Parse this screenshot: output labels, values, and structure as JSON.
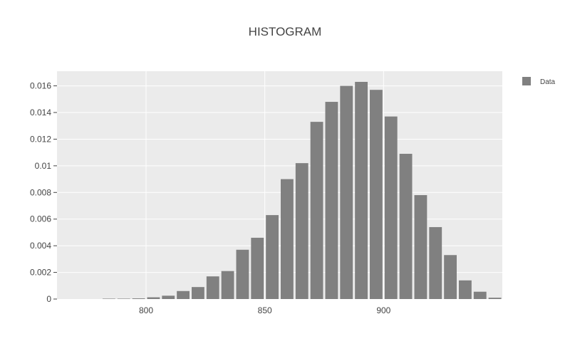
{
  "colors": {
    "bar": "#808080",
    "plot_background": "#ebebeb",
    "grid": "#ffffff",
    "text": "#444444"
  },
  "chart_data": {
    "type": "bar",
    "title": "HISTOGRAM",
    "xlabel": "",
    "ylabel": "",
    "bin_width": 6.25,
    "bin_starts": [
      762.5,
      768.75,
      775,
      781.25,
      787.5,
      793.75,
      800,
      806.25,
      812.5,
      818.75,
      825,
      831.25,
      837.5,
      843.75,
      850,
      856.25,
      862.5,
      868.75,
      875,
      881.25,
      887.5,
      893.75,
      900,
      906.25,
      912.5,
      918.75,
      925,
      931.25,
      937.5,
      943.75
    ],
    "series": [
      {
        "name": "Data",
        "values": [
          0,
          0,
          0,
          3e-05,
          3e-05,
          5e-05,
          0.00013,
          0.00025,
          0.0006,
          0.0009,
          0.0017,
          0.0021,
          0.0037,
          0.0046,
          0.0063,
          0.009,
          0.0102,
          0.0133,
          0.0148,
          0.016,
          0.0163,
          0.0157,
          0.0137,
          0.0109,
          0.0078,
          0.0054,
          0.0033,
          0.0014,
          0.00055,
          0.0001
        ]
      }
    ],
    "xlim": [
      762.5,
      950
    ],
    "ylim": [
      0,
      0.0171
    ],
    "x_ticks": [
      800,
      850,
      900
    ],
    "x_tick_labels": [
      "800",
      "850",
      "900"
    ],
    "y_ticks": [
      0,
      0.002,
      0.004,
      0.006,
      0.008,
      0.01,
      0.012,
      0.014,
      0.016
    ],
    "y_tick_labels": [
      "0",
      "0.002",
      "0.004",
      "0.006",
      "0.008",
      "0.01",
      "0.012",
      "0.014",
      "0.016"
    ],
    "grid": true,
    "legend": {
      "position": "top-right",
      "entries": [
        "Data"
      ]
    }
  }
}
